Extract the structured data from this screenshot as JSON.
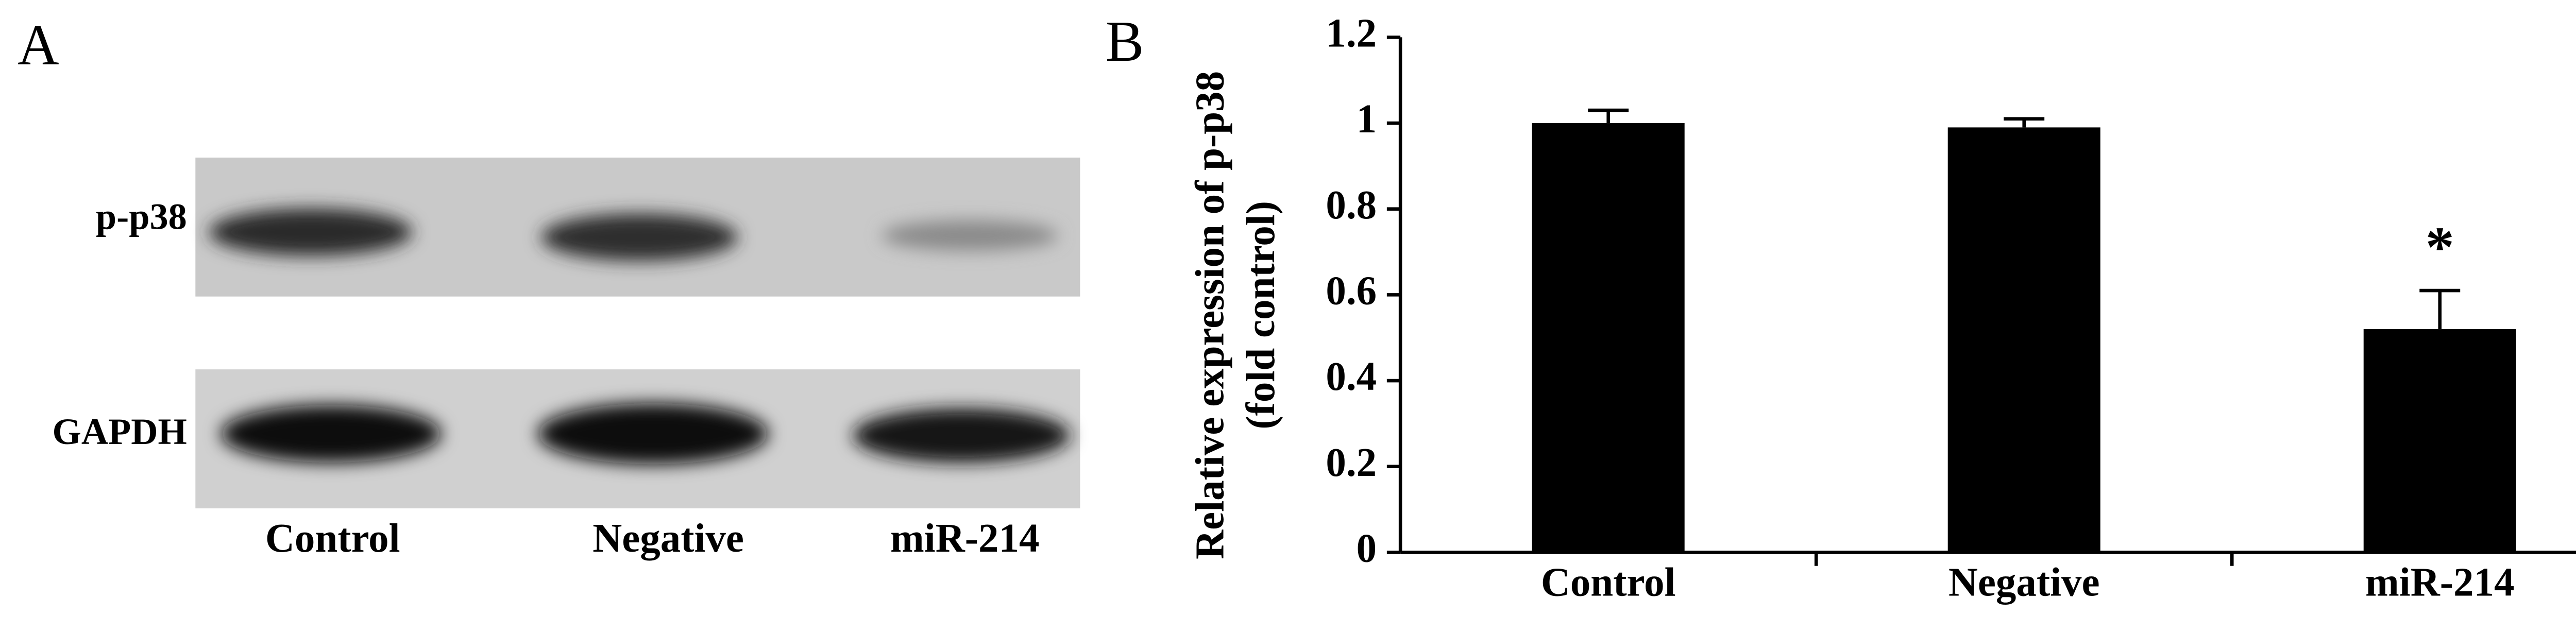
{
  "panel_a": {
    "label": "A",
    "rows": [
      "p-p38",
      "GAPDH"
    ],
    "lanes": [
      "Control",
      "Negative",
      "miR-214"
    ]
  },
  "chart_data": {
    "type": "bar",
    "panel_label": "B",
    "ylabel": [
      "Relative expression of p-p38",
      "(fold control)"
    ],
    "categories": [
      "Control",
      "Negative",
      "miR-214"
    ],
    "values": [
      1.0,
      0.99,
      0.52
    ],
    "errors": [
      0.03,
      0.02,
      0.09
    ],
    "color": "#000000",
    "annotations": [
      {
        "category": 2,
        "text": "*"
      }
    ],
    "ylim": [
      0,
      1.2
    ],
    "yticks": [
      0,
      0.2,
      0.4,
      0.6,
      0.8,
      1,
      1.2
    ]
  }
}
